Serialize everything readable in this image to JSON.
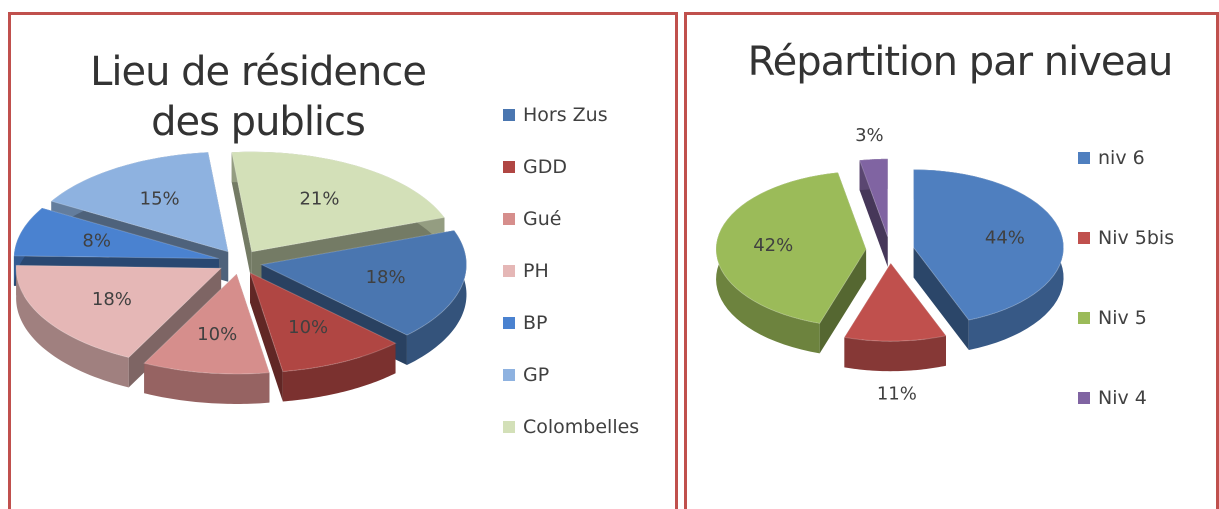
{
  "chart_data": [
    {
      "type": "pie",
      "title": "Lieu de résidence des publics",
      "categories": [
        "Hors Zus",
        "GDD",
        "Gué",
        "PH",
        "BP",
        "GP",
        "Colombelles"
      ],
      "values": [
        18,
        10,
        10,
        18,
        8,
        15,
        21
      ],
      "value_labels": [
        "18%",
        "10%",
        "10%",
        "18%",
        "8%",
        "15%",
        "21%"
      ],
      "colors": [
        "#4a76b0",
        "#b04643",
        "#d68e8c",
        "#e5b7b6",
        "#4a82d0",
        "#8eb2e0",
        "#d3e0b8"
      ],
      "legend": "right"
    },
    {
      "type": "pie",
      "title": "Répartition par niveau",
      "categories": [
        "niv 6",
        "Niv 5bis",
        "Niv 5",
        "Niv 4"
      ],
      "values": [
        44,
        11,
        42,
        3
      ],
      "value_labels": [
        "44%",
        "11%",
        "42%",
        "3%"
      ],
      "colors": [
        "#4f7fbf",
        "#c0504d",
        "#9bbb59",
        "#8064a2"
      ],
      "legend": "right"
    }
  ]
}
